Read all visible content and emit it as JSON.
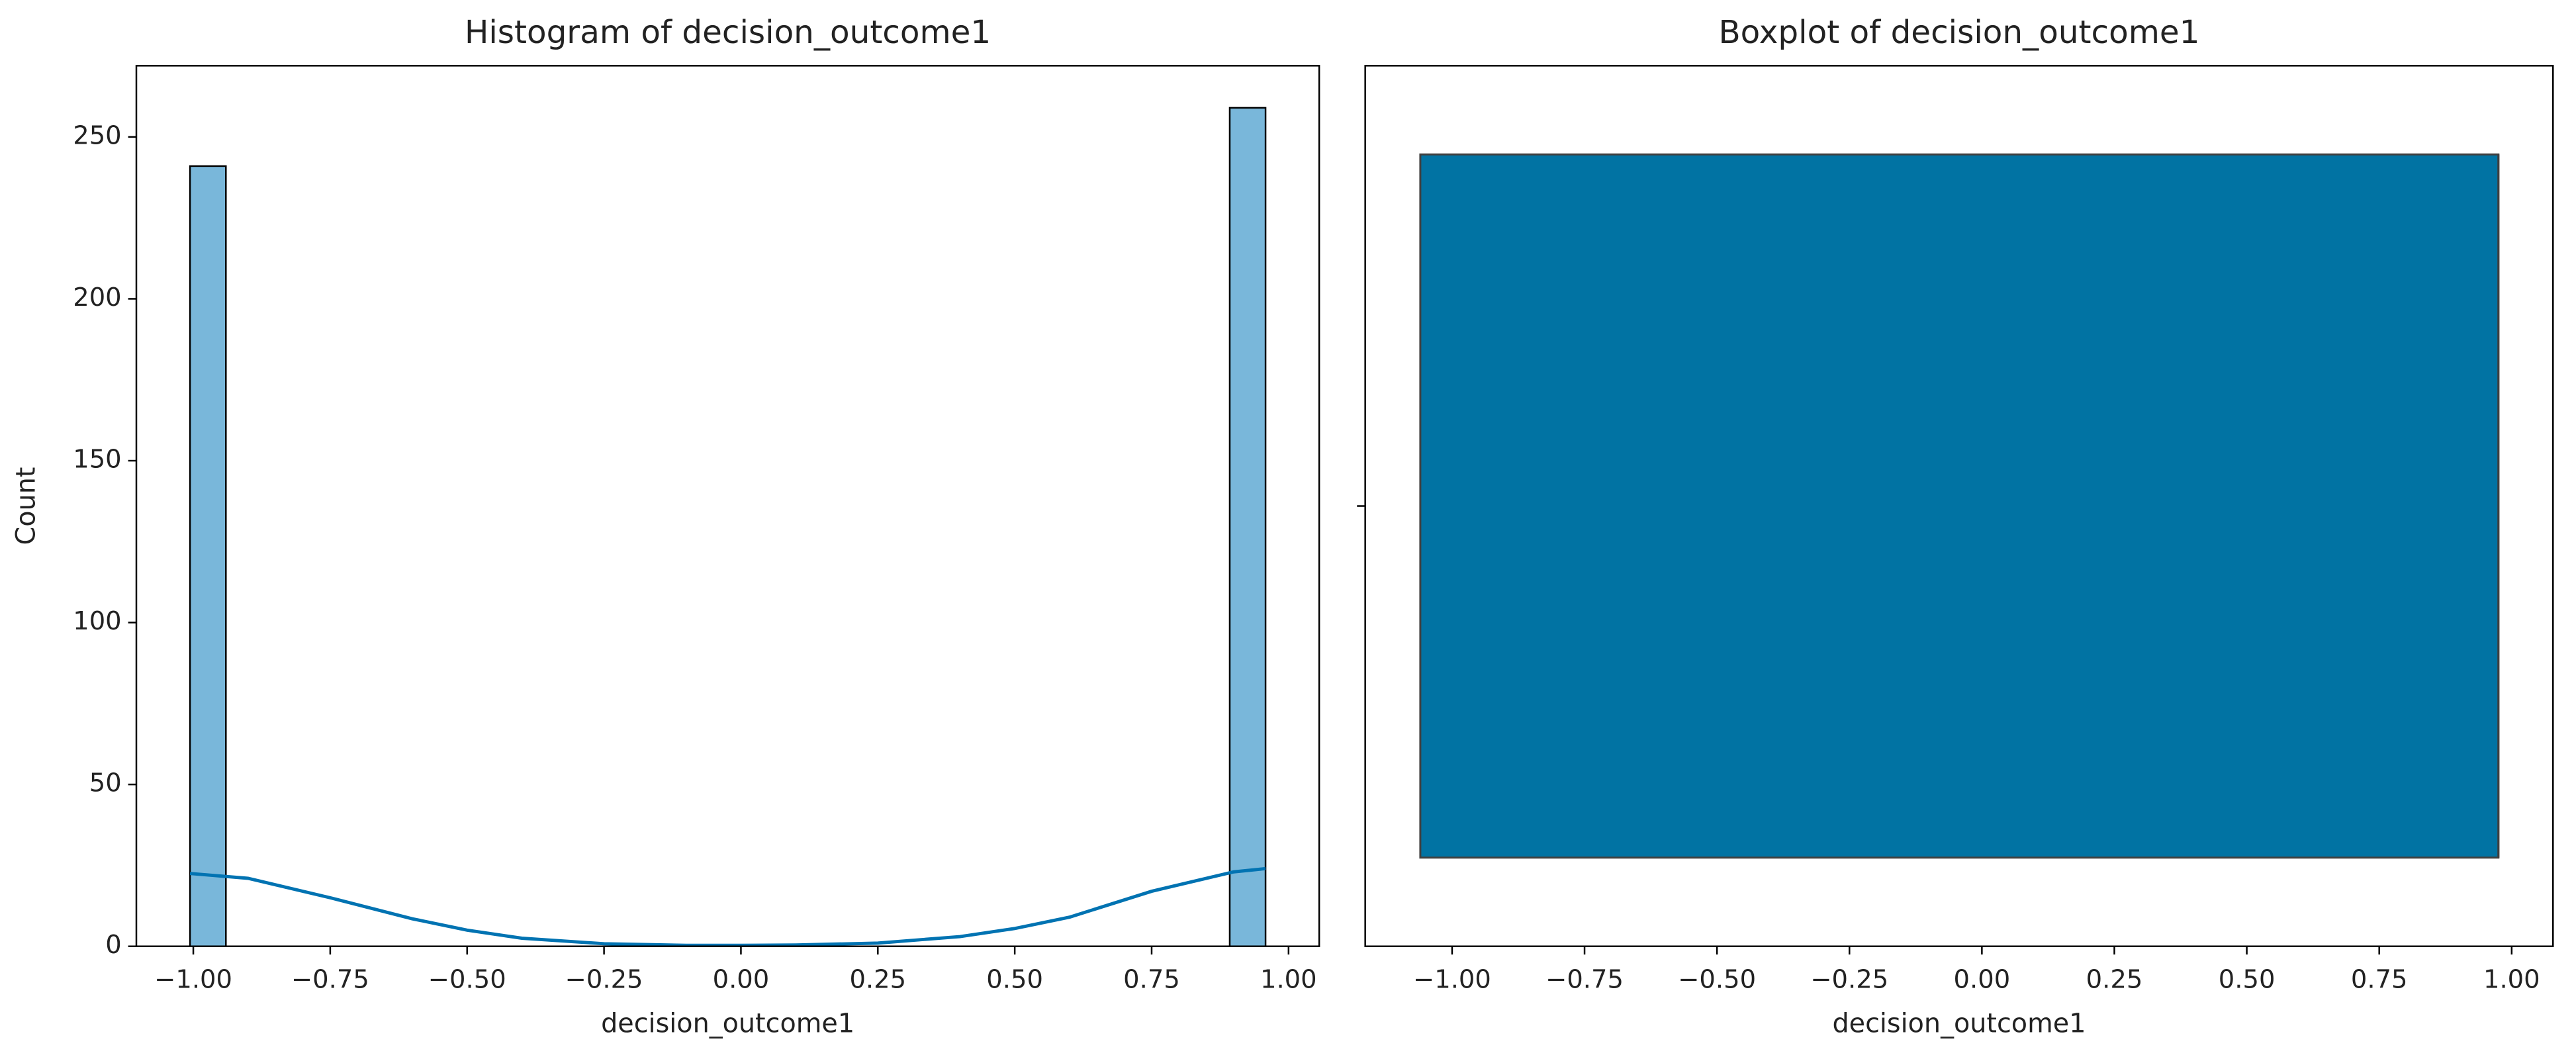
{
  "chart_data": [
    {
      "type": "histogram",
      "title": "Histogram of decision_outcome1",
      "xlabel": "decision_outcome1",
      "ylabel": "Count",
      "bins": [
        -1.006,
        -0.9405,
        -0.8751,
        -0.8096,
        -0.7442,
        -0.6787,
        -0.6132,
        -0.5477,
        -0.4823,
        -0.4168,
        -0.3513,
        -0.2859,
        -0.2204,
        -0.1549,
        -0.0895,
        -0.024,
        0.0415,
        0.1069,
        0.1724,
        0.2379,
        0.3034,
        0.3688,
        0.4343,
        0.4998,
        0.5652,
        0.6307,
        0.6962,
        0.7616,
        0.8271,
        0.8926,
        0.958
      ],
      "counts": [
        241,
        0,
        0,
        0,
        0,
        0,
        0,
        0,
        0,
        0,
        0,
        0,
        0,
        0,
        0,
        0,
        0,
        0,
        0,
        0,
        0,
        0,
        0,
        0,
        0,
        0,
        0,
        0,
        0,
        259
      ],
      "color": "#79b7da",
      "kde": {
        "x": [
          -1.006,
          -0.9,
          -0.75,
          -0.6,
          -0.5,
          -0.4,
          -0.25,
          -0.1,
          0,
          0.1,
          0.25,
          0.4,
          0.5,
          0.6,
          0.75,
          0.9,
          0.958
        ],
        "values": [
          22.5,
          21,
          15,
          8.5,
          5,
          2.5,
          0.8,
          0.3,
          0.3,
          0.4,
          1,
          3,
          5.5,
          9,
          17,
          23,
          24
        ],
        "color": "#0173b2"
      },
      "xlim": [
        -1.104,
        1.056
      ],
      "ylim": [
        0,
        272
      ],
      "xticks": [
        {
          "value": -1,
          "label": "−1.00"
        },
        {
          "value": -0.75,
          "label": "−0.75"
        },
        {
          "value": -0.5,
          "label": "−0.50"
        },
        {
          "value": -0.25,
          "label": "−0.25"
        },
        {
          "value": 0,
          "label": "0.00"
        },
        {
          "value": 0.25,
          "label": "0.25"
        },
        {
          "value": 0.5,
          "label": "0.50"
        },
        {
          "value": 0.75,
          "label": "0.75"
        },
        {
          "value": 1,
          "label": "1.00"
        }
      ],
      "yticks": [
        0,
        50,
        100,
        150,
        200,
        250
      ]
    },
    {
      "type": "box",
      "title": "Boxplot of decision_outcome1",
      "xlabel": "decision_outcome1",
      "min": -1.06,
      "q1": -1.06,
      "median": 0.975,
      "q3": 0.975,
      "max": 0.975,
      "color": "#0173a3",
      "xlim": [
        -1.164,
        1.078
      ],
      "xticks": [
        {
          "value": -1,
          "label": "−1.00"
        },
        {
          "value": -0.75,
          "label": "−0.75"
        },
        {
          "value": -0.5,
          "label": "−0.50"
        },
        {
          "value": -0.25,
          "label": "−0.25"
        },
        {
          "value": 0,
          "label": "0.00"
        },
        {
          "value": 0.25,
          "label": "0.25"
        },
        {
          "value": 0.5,
          "label": "0.50"
        },
        {
          "value": 0.75,
          "label": "0.75"
        },
        {
          "value": 1,
          "label": "1.00"
        }
      ]
    }
  ]
}
